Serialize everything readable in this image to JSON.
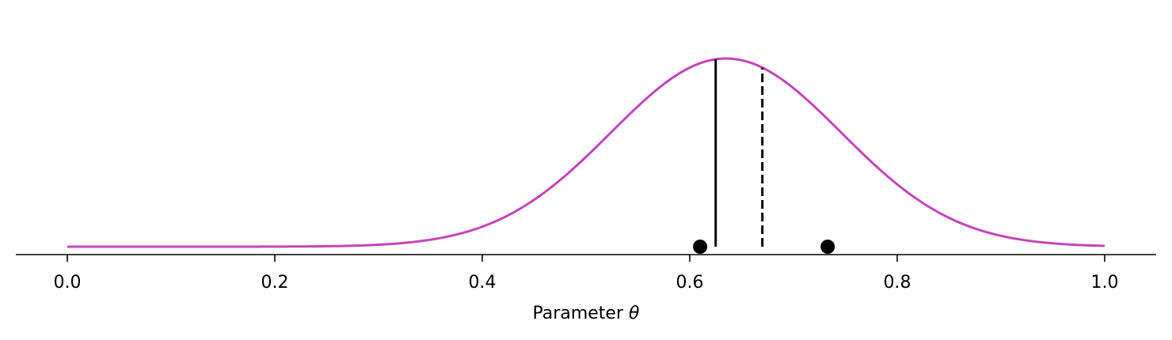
{
  "chart_data": {
    "type": "line",
    "xlabel": "Parameter θ",
    "xlabel_text": "Parameter ",
    "xlabel_symbol": "θ",
    "xlim": [
      -0.05,
      1.05
    ],
    "xticks": [
      0.0,
      0.2,
      0.4,
      0.6,
      0.8,
      1.0
    ],
    "xtick_labels": [
      "0.0",
      "0.2",
      "0.4",
      "0.6",
      "0.8",
      "1.0"
    ],
    "y_axis_visible": false,
    "grid": false,
    "series": [
      {
        "kind": "density-curve",
        "color": "#c444bb",
        "mode": 0.635,
        "spread": 0.111,
        "x_range": [
          0.0,
          1.0
        ]
      }
    ],
    "vertical_lines": [
      {
        "x": 0.625,
        "style": "solid",
        "color": "#000000"
      },
      {
        "x": 0.67,
        "style": "dashed",
        "color": "#000000"
      }
    ],
    "points": [
      {
        "x": 0.61,
        "color": "#000000"
      },
      {
        "x": 0.733,
        "color": "#000000"
      }
    ]
  }
}
